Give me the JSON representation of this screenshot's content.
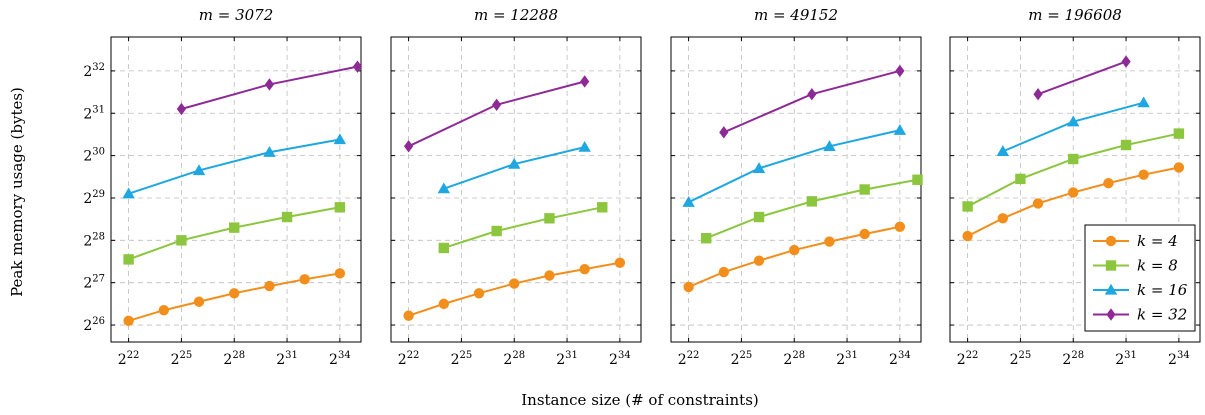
{
  "chart_data": {
    "type": "line",
    "ylabel": "Peak memory usage (bytes)",
    "xlabel": "Instance size (# of constraints)",
    "x_scale": "log2",
    "y_scale": "log2",
    "x_tick_base": "2",
    "x_tick_exponents": [
      22,
      25,
      28,
      31,
      34
    ],
    "y_tick_base": "2",
    "y_tick_exponents": [
      26,
      27,
      28,
      29,
      30,
      31,
      32
    ],
    "xlim_log2": [
      21,
      35.2
    ],
    "ylim_log2": [
      25.6,
      32.8
    ],
    "grid": true,
    "legend_position": "bottom-right of last panel",
    "series_styles": [
      {
        "name": "k = 4",
        "legend_label": "k = 4",
        "color": "#f28e1c",
        "marker": "circle"
      },
      {
        "name": "k = 8",
        "legend_label": "k = 8",
        "color": "#8cc63f",
        "marker": "square"
      },
      {
        "name": "k = 16",
        "legend_label": "k = 16",
        "color": "#1ea7e0",
        "marker": "triangle"
      },
      {
        "name": "k = 32",
        "legend_label": "k = 32",
        "color": "#8e2a96",
        "marker": "diamond"
      }
    ],
    "panels": [
      {
        "title": "m = 3072",
        "series": [
          {
            "name": "k = 4",
            "x_log2": [
              22,
              24,
              26,
              28,
              30,
              32,
              34
            ],
            "y_log2": [
              26.1,
              26.35,
              26.55,
              26.75,
              26.92,
              27.08,
              27.22
            ]
          },
          {
            "name": "k = 8",
            "x_log2": [
              22,
              25,
              28,
              31,
              34
            ],
            "y_log2": [
              27.55,
              28.0,
              28.3,
              28.55,
              28.78
            ]
          },
          {
            "name": "k = 16",
            "x_log2": [
              22,
              26,
              30,
              34
            ],
            "y_log2": [
              29.1,
              29.65,
              30.08,
              30.38
            ]
          },
          {
            "name": "k = 32",
            "x_log2": [
              25,
              30,
              35
            ],
            "y_log2": [
              31.1,
              31.68,
              32.1
            ]
          }
        ]
      },
      {
        "title": "m = 12288",
        "series": [
          {
            "name": "k = 4",
            "x_log2": [
              22,
              24,
              26,
              28,
              30,
              32,
              34
            ],
            "y_log2": [
              26.22,
              26.5,
              26.75,
              26.98,
              27.17,
              27.32,
              27.47
            ]
          },
          {
            "name": "k = 8",
            "x_log2": [
              24,
              27,
              30,
              33
            ],
            "y_log2": [
              27.82,
              28.22,
              28.52,
              28.78
            ]
          },
          {
            "name": "k = 16",
            "x_log2": [
              24,
              28,
              32
            ],
            "y_log2": [
              29.22,
              29.8,
              30.2
            ]
          },
          {
            "name": "k = 32",
            "x_log2": [
              22,
              27,
              32
            ],
            "y_log2": [
              30.22,
              31.2,
              31.75
            ]
          }
        ]
      },
      {
        "title": "m = 49152",
        "series": [
          {
            "name": "k = 4",
            "x_log2": [
              22,
              24,
              26,
              28,
              30,
              32,
              34
            ],
            "y_log2": [
              26.9,
              27.25,
              27.52,
              27.77,
              27.97,
              28.15,
              28.32
            ]
          },
          {
            "name": "k = 8",
            "x_log2": [
              23,
              26,
              29,
              32,
              35
            ],
            "y_log2": [
              28.05,
              28.55,
              28.92,
              29.2,
              29.43
            ]
          },
          {
            "name": "k = 16",
            "x_log2": [
              22,
              26,
              30,
              34
            ],
            "y_log2": [
              28.9,
              29.7,
              30.22,
              30.6
            ]
          },
          {
            "name": "k = 32",
            "x_log2": [
              24,
              29,
              34
            ],
            "y_log2": [
              30.55,
              31.45,
              32.0
            ]
          }
        ]
      },
      {
        "title": "m = 196608",
        "series": [
          {
            "name": "k = 4",
            "x_log2": [
              22,
              24,
              26,
              28,
              30,
              32,
              34
            ],
            "y_log2": [
              28.1,
              28.52,
              28.87,
              29.13,
              29.35,
              29.55,
              29.72
            ]
          },
          {
            "name": "k = 8",
            "x_log2": [
              22,
              25,
              28,
              31,
              34
            ],
            "y_log2": [
              28.8,
              29.45,
              29.92,
              30.25,
              30.52
            ]
          },
          {
            "name": "k = 16",
            "x_log2": [
              24,
              28,
              32
            ],
            "y_log2": [
              30.1,
              30.8,
              31.25
            ]
          },
          {
            "name": "k = 32",
            "x_log2": [
              26,
              31
            ],
            "y_log2": [
              31.45,
              32.22
            ]
          }
        ]
      }
    ]
  }
}
